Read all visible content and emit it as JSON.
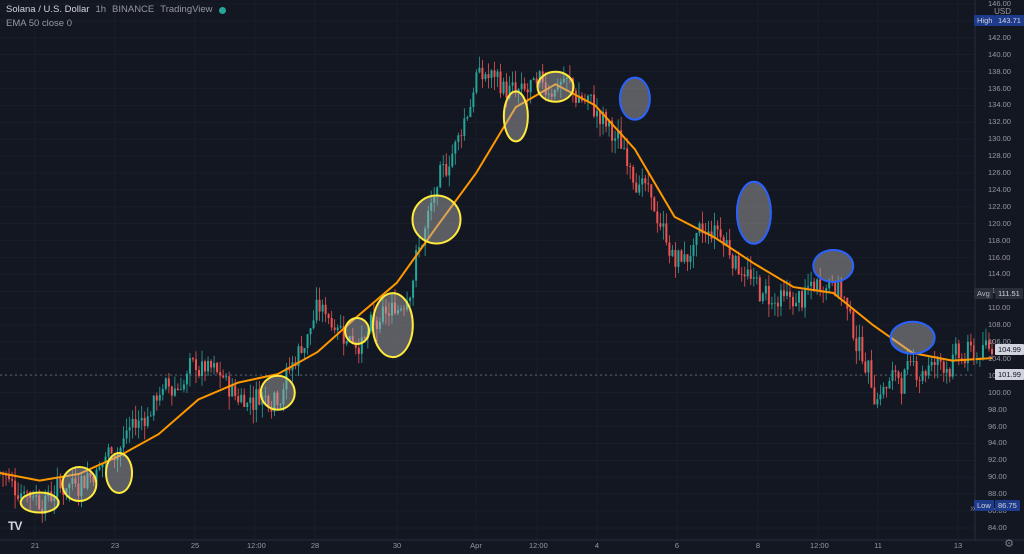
{
  "legend": {
    "symbol": "Solana / U.S. Dollar",
    "interval": "1h",
    "exchange": "BINANCE",
    "source": "TradingView",
    "indicator": "EMA 50 close 0"
  },
  "price_axis": {
    "currency": "USD",
    "ticks": [
      "146.00",
      "144.00",
      "142.00",
      "140.00",
      "138.00",
      "136.00",
      "134.00",
      "132.00",
      "130.00",
      "128.00",
      "126.00",
      "124.00",
      "122.00",
      "120.00",
      "118.00",
      "116.00",
      "114.00",
      "112.00",
      "110.00",
      "108.00",
      "106.00",
      "104.00",
      "102.00",
      "100.00",
      "98.00",
      "96.00",
      "94.00",
      "92.00",
      "90.00",
      "88.00",
      "86.00",
      "84.00"
    ],
    "high_label": "High",
    "high_value": "143.71",
    "avg_label": "Avg",
    "avg_value": "111.51",
    "last_value": "104.99",
    "crosshair_value": "101.99",
    "low_label": "Low",
    "low_value": "86.75"
  },
  "time_axis": {
    "labels": [
      "21",
      "23",
      "25",
      "12:00",
      "28",
      "30",
      "Apr",
      "12:00",
      "4",
      "6",
      "8",
      "12:00",
      "11",
      "13"
    ]
  },
  "colors": {
    "background": "#131722",
    "up": "#26a69a",
    "down": "#ef5350",
    "ema": "#ff9800",
    "highlight_yellow": "#ffeb3b",
    "highlight_blue": "#2962ff"
  },
  "icons": {
    "logo": "tradingview-logo-icon",
    "settings": "gear-icon"
  },
  "chart_data": {
    "type": "line",
    "title": "Solana / U.S. Dollar",
    "xlabel": "",
    "ylabel": "USD",
    "ylim": [
      84,
      146
    ],
    "x": [
      "20",
      "21",
      "22",
      "23",
      "24",
      "25",
      "26",
      "27",
      "28",
      "29",
      "30",
      "31",
      "Apr",
      "2",
      "3",
      "4",
      "5",
      "6",
      "7",
      "8",
      "9",
      "10",
      "11",
      "12",
      "13",
      "14"
    ],
    "series": [
      {
        "name": "EMA 50 close 0",
        "values": [
          90.5,
          89.6,
          90.4,
          92.5,
          95.1,
          99.2,
          101.2,
          102.2,
          104.8,
          109.0,
          113.0,
          119.6,
          126.0,
          133.8,
          136.5,
          134.0,
          128.8,
          120.8,
          118.4,
          115.3,
          112.5,
          111.8,
          108.0,
          104.7,
          103.8,
          104.1
        ]
      }
    ],
    "price_range": {
      "high": 143.71,
      "low": 86.75,
      "last": 104.99,
      "average": 111.51
    },
    "markers_yellow": [
      {
        "date": "21",
        "price": 87.0
      },
      {
        "date": "22",
        "price": 89.2
      },
      {
        "date": "23",
        "price": 90.5
      },
      {
        "date": "27",
        "price": 100.0
      },
      {
        "date": "29",
        "price": 107.3
      },
      {
        "date": "30",
        "price": 108.0
      },
      {
        "date": "31",
        "price": 120.5
      },
      {
        "date": "Apr 2",
        "price": 132.7
      },
      {
        "date": "Apr 3",
        "price": 136.2
      }
    ],
    "markers_blue": [
      {
        "date": "Apr 5",
        "price": 134.8
      },
      {
        "date": "Apr 8",
        "price": 121.3
      },
      {
        "date": "Apr 10",
        "price": 115.0
      },
      {
        "date": "Apr 12",
        "price": 106.5
      }
    ]
  }
}
